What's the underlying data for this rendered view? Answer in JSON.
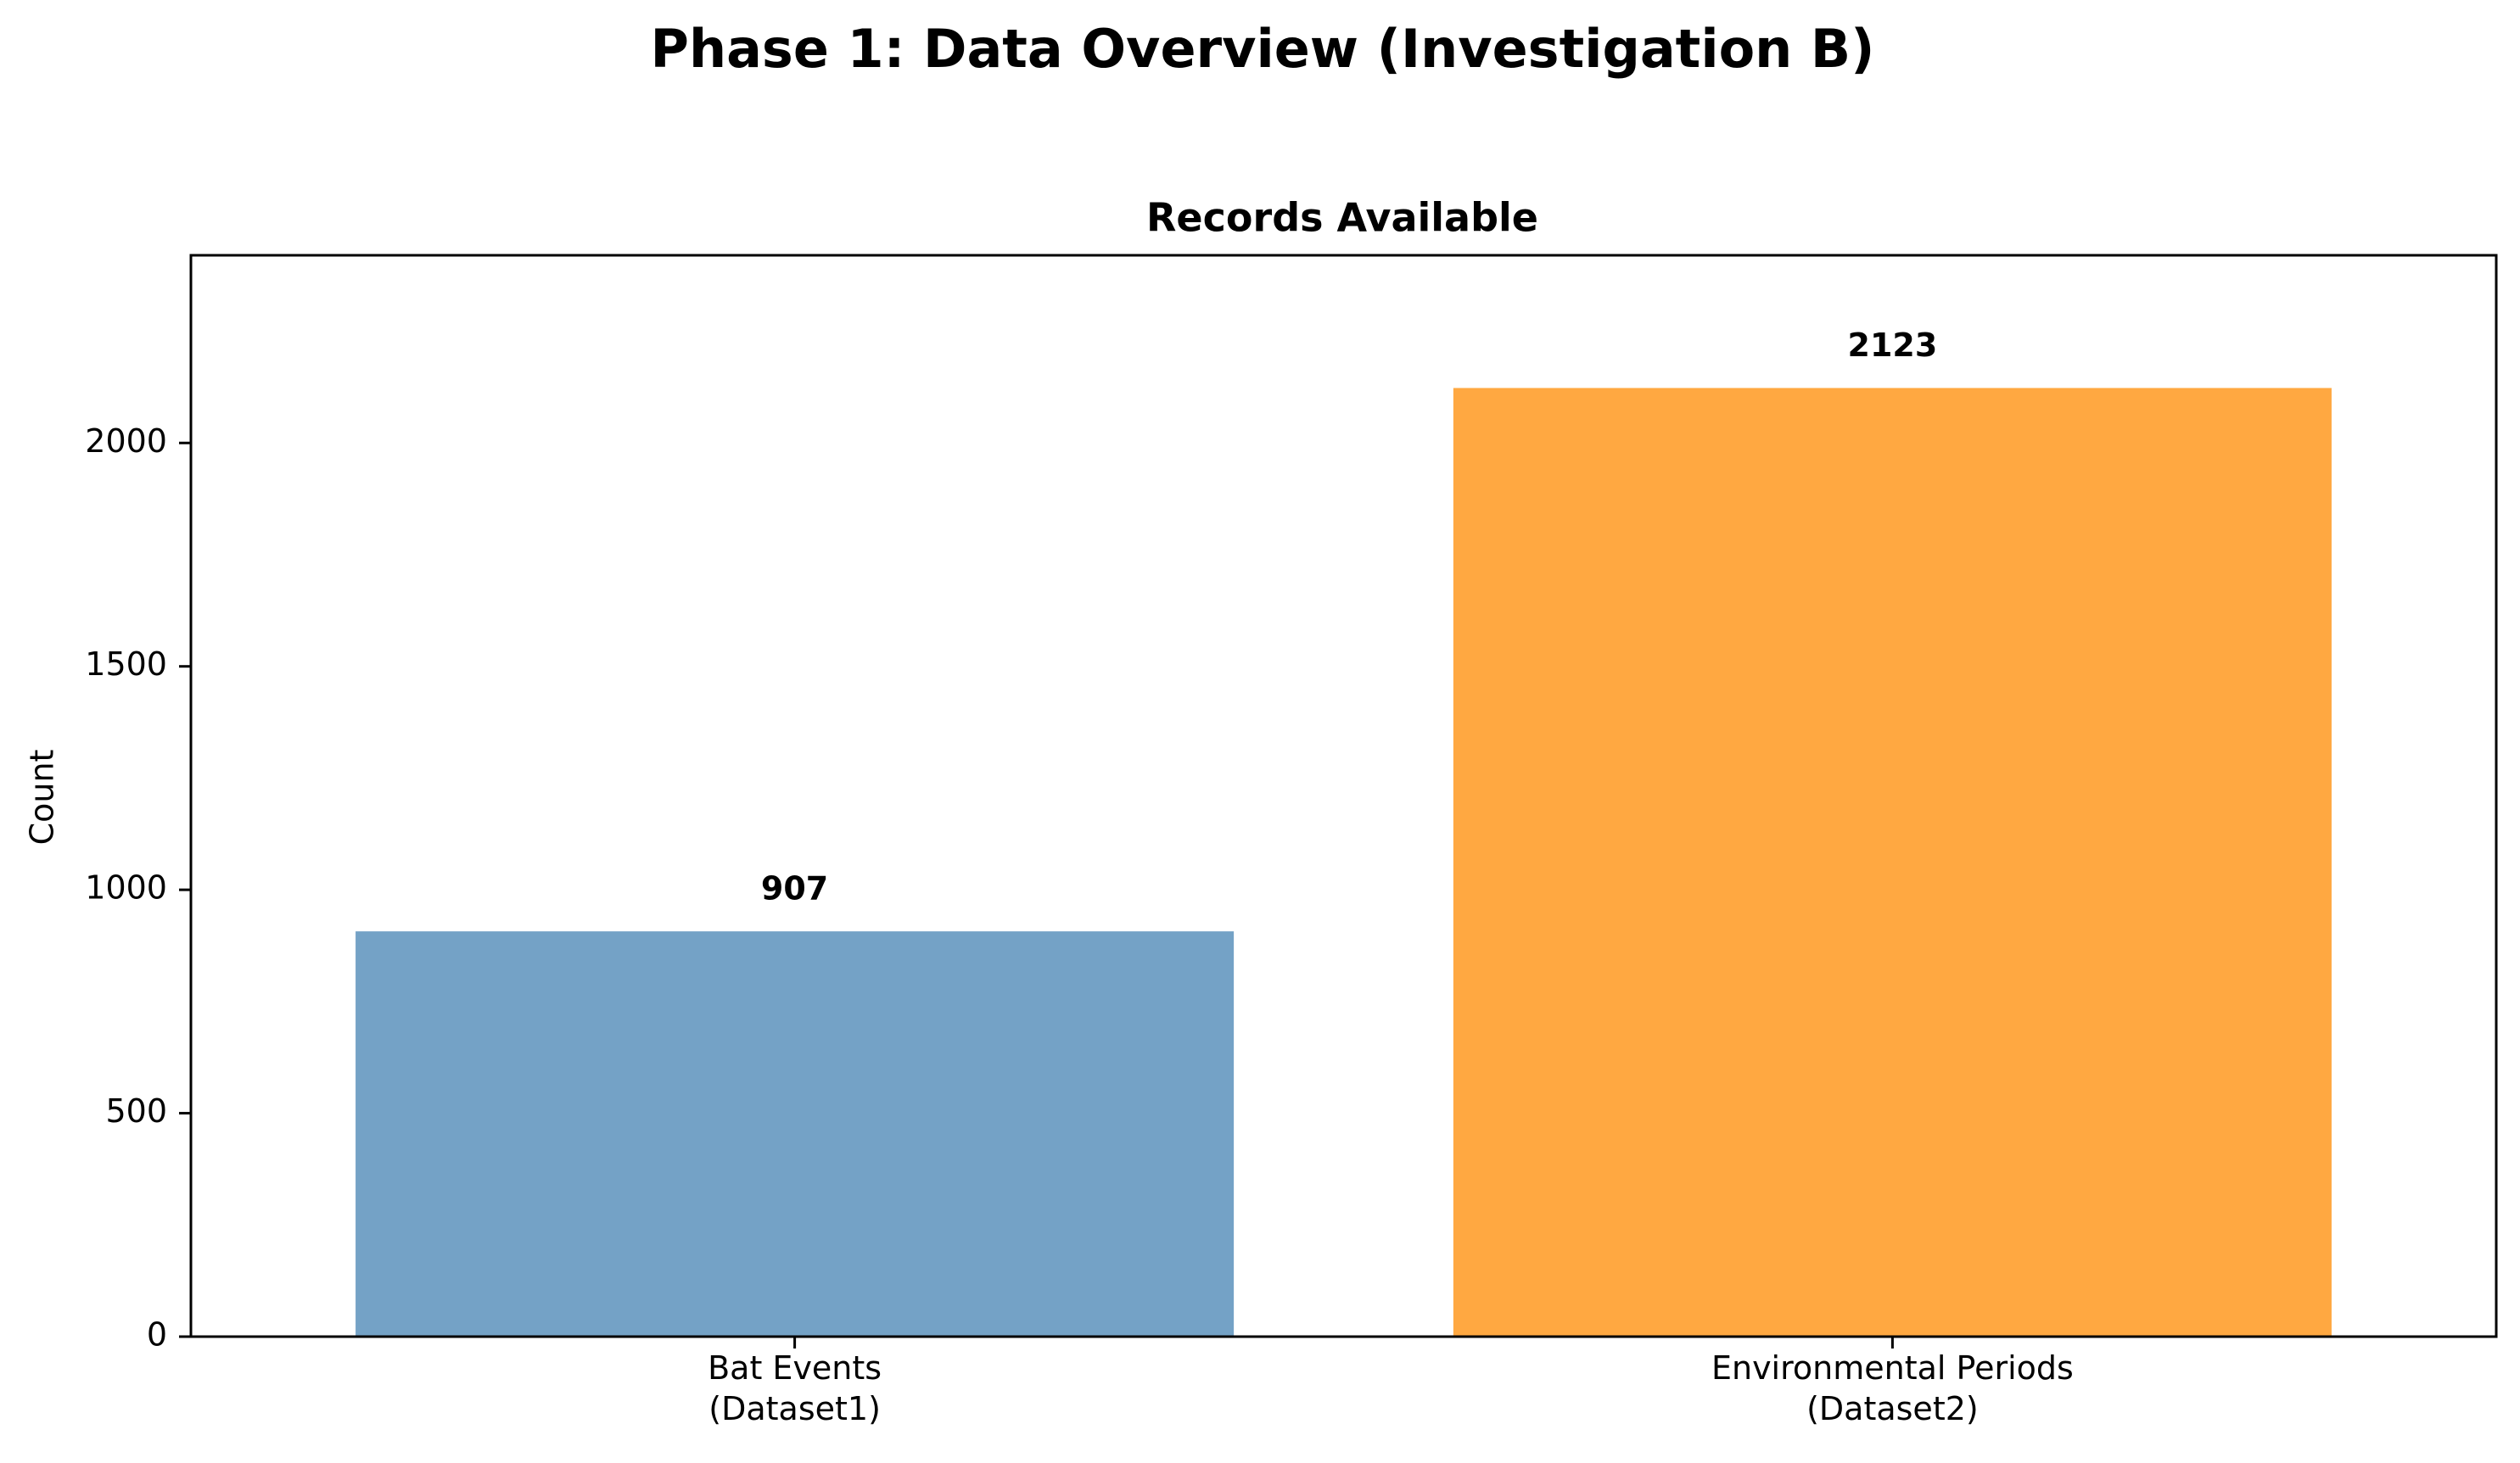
{
  "figure": {
    "suptitle": "Phase 1: Data Overview (Investigation B)"
  },
  "chart_data": {
    "type": "bar",
    "title": "Records Available",
    "xlabel": "",
    "ylabel": "Count",
    "categories": [
      "Bat Events\n(Dataset1)",
      "Environmental Periods\n(Dataset2)"
    ],
    "values": [
      907,
      2123
    ],
    "data_labels": [
      "907",
      "2123"
    ],
    "bar_colors": [
      "#74a2c6",
      "#ffa841"
    ],
    "ylim": [
      0,
      2420
    ],
    "yticks": [
      0,
      500,
      1000,
      1500,
      2000
    ],
    "grid": false,
    "legend": "none"
  }
}
